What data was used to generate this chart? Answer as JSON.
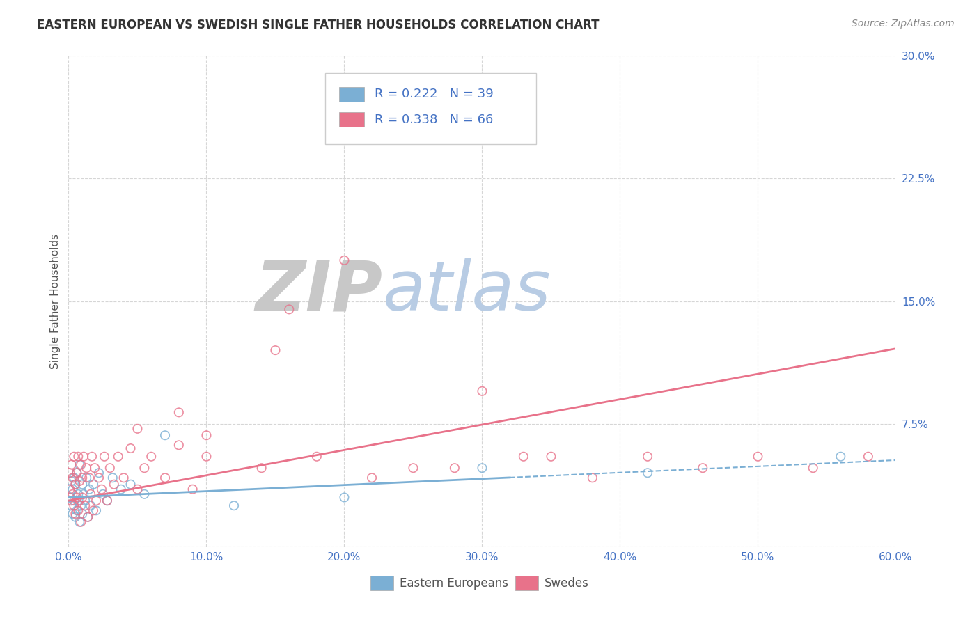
{
  "title": "EASTERN EUROPEAN VS SWEDISH SINGLE FATHER HOUSEHOLDS CORRELATION CHART",
  "source": "Source: ZipAtlas.com",
  "ylabel": "Single Father Households",
  "xlabel": "",
  "xlim": [
    0.0,
    0.6
  ],
  "ylim": [
    0.0,
    0.3
  ],
  "yticks": [
    0.0,
    0.075,
    0.15,
    0.225,
    0.3
  ],
  "ytick_labels": [
    "",
    "7.5%",
    "15.0%",
    "22.5%",
    "30.0%"
  ],
  "xticks": [
    0.0,
    0.1,
    0.2,
    0.3,
    0.4,
    0.5,
    0.6
  ],
  "xtick_labels": [
    "0.0%",
    "10.0%",
    "20.0%",
    "30.0%",
    "40.0%",
    "50.0%",
    "60.0%"
  ],
  "blue_color": "#7bafd4",
  "pink_color": "#e8728a",
  "axis_color": "#4472c4",
  "title_color": "#333333",
  "grid_color": "#cccccc",
  "watermark_gray": "#c8c8c8",
  "watermark_blue": "#b8cce4",
  "legend_r1": "R = 0.222",
  "legend_n1": "N = 39",
  "legend_r2": "R = 0.338",
  "legend_n2": "N = 66",
  "legend_label1": "Eastern Europeans",
  "legend_label2": "Swedes",
  "blue_scatter_x": [
    0.001,
    0.002,
    0.002,
    0.003,
    0.003,
    0.004,
    0.004,
    0.005,
    0.005,
    0.006,
    0.006,
    0.007,
    0.007,
    0.008,
    0.008,
    0.009,
    0.01,
    0.01,
    0.011,
    0.012,
    0.013,
    0.014,
    0.015,
    0.016,
    0.018,
    0.02,
    0.022,
    0.025,
    0.028,
    0.032,
    0.038,
    0.045,
    0.055,
    0.07,
    0.12,
    0.2,
    0.3,
    0.42,
    0.56
  ],
  "blue_scatter_y": [
    0.03,
    0.025,
    0.04,
    0.02,
    0.035,
    0.028,
    0.042,
    0.018,
    0.038,
    0.022,
    0.045,
    0.028,
    0.032,
    0.015,
    0.05,
    0.025,
    0.038,
    0.02,
    0.032,
    0.028,
    0.042,
    0.018,
    0.035,
    0.025,
    0.038,
    0.022,
    0.045,
    0.032,
    0.028,
    0.042,
    0.035,
    0.038,
    0.032,
    0.068,
    0.025,
    0.03,
    0.048,
    0.045,
    0.055
  ],
  "pink_scatter_x": [
    0.001,
    0.001,
    0.002,
    0.002,
    0.003,
    0.003,
    0.004,
    0.004,
    0.005,
    0.005,
    0.006,
    0.006,
    0.007,
    0.007,
    0.008,
    0.008,
    0.009,
    0.009,
    0.01,
    0.01,
    0.011,
    0.012,
    0.013,
    0.014,
    0.015,
    0.016,
    0.017,
    0.018,
    0.019,
    0.02,
    0.022,
    0.024,
    0.026,
    0.028,
    0.03,
    0.033,
    0.036,
    0.04,
    0.045,
    0.05,
    0.055,
    0.06,
    0.07,
    0.08,
    0.09,
    0.1,
    0.14,
    0.18,
    0.22,
    0.28,
    0.33,
    0.38,
    0.42,
    0.46,
    0.5,
    0.54,
    0.58,
    0.16,
    0.2,
    0.3,
    0.1,
    0.08,
    0.35,
    0.25,
    0.15,
    0.05
  ],
  "pink_scatter_y": [
    0.035,
    0.045,
    0.028,
    0.05,
    0.032,
    0.042,
    0.025,
    0.055,
    0.038,
    0.02,
    0.045,
    0.03,
    0.055,
    0.022,
    0.04,
    0.028,
    0.05,
    0.015,
    0.042,
    0.03,
    0.055,
    0.025,
    0.048,
    0.018,
    0.042,
    0.032,
    0.055,
    0.022,
    0.048,
    0.028,
    0.042,
    0.035,
    0.055,
    0.028,
    0.048,
    0.038,
    0.055,
    0.042,
    0.06,
    0.035,
    0.048,
    0.055,
    0.042,
    0.062,
    0.035,
    0.055,
    0.048,
    0.055,
    0.042,
    0.048,
    0.055,
    0.042,
    0.055,
    0.048,
    0.055,
    0.048,
    0.055,
    0.145,
    0.175,
    0.095,
    0.068,
    0.082,
    0.055,
    0.048,
    0.12,
    0.072
  ],
  "bg_color": "#ffffff",
  "title_fontsize": 12,
  "source_fontsize": 10,
  "blue_trend_solid_end": 0.32,
  "pink_trend_intercept": 0.028,
  "pink_trend_slope": 0.155,
  "blue_trend_intercept": 0.03,
  "blue_trend_slope": 0.038
}
